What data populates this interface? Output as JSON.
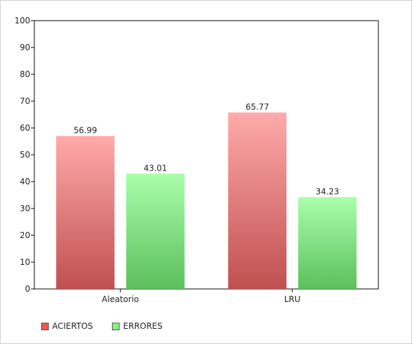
{
  "colors": {
    "aciertos_top": "#ffaaaa",
    "aciertos_bottom": "#c05050",
    "errores_top": "#aaffaa",
    "errores_bottom": "#5cbf5c",
    "aciertos_swatch": "#ee5555",
    "errores_swatch": "#88ee88"
  },
  "chart_data": {
    "type": "bar",
    "categories": [
      "Aleatorio",
      "LRU"
    ],
    "series": [
      {
        "name": "ACIERTOS",
        "values": [
          56.99,
          65.77
        ],
        "labels": [
          "56.99",
          "65.77"
        ]
      },
      {
        "name": "ERRORES",
        "values": [
          43.01,
          34.23
        ],
        "labels": [
          "43.01",
          "34.23"
        ]
      }
    ],
    "ylim": [
      0,
      100
    ],
    "yticks": [
      "0",
      "10",
      "20",
      "30",
      "40",
      "50",
      "60",
      "70",
      "80",
      "90",
      "100"
    ],
    "grid": false,
    "legend_position": "bottom-left"
  }
}
